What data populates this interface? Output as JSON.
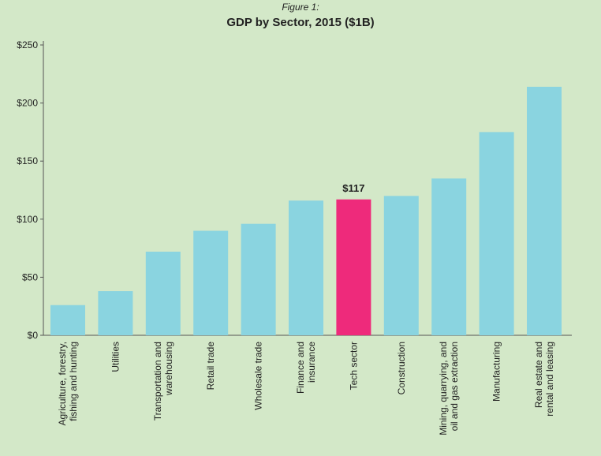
{
  "figure_caption": "Figure 1:",
  "colors": {
    "background": "#d3e8c8",
    "bar": "#8ad4e0",
    "highlight": "#ee2a7b",
    "axis": "#555555"
  },
  "chart_data": {
    "type": "bar",
    "title": "GDP by Sector, 2015 ($1B)",
    "xlabel": "",
    "ylabel": "",
    "ylim": [
      0,
      250
    ],
    "yticks": [
      {
        "value": 0,
        "label": "$0"
      },
      {
        "value": 50,
        "label": "$50"
      },
      {
        "value": 100,
        "label": "$100"
      },
      {
        "value": 150,
        "label": "$150"
      },
      {
        "value": 200,
        "label": "$200"
      },
      {
        "value": 250,
        "label": "$250"
      }
    ],
    "categories": [
      [
        "Agriculture, forestry,",
        "fishing and hunting"
      ],
      [
        "Utilities"
      ],
      [
        "Transportation and",
        "warehousing"
      ],
      [
        "Retail trade"
      ],
      [
        "Wholesale trade"
      ],
      [
        "Finance and",
        "insurance"
      ],
      [
        "Tech sector"
      ],
      [
        "Construction"
      ],
      [
        "Mining, quarrying, and",
        "oil and gas extraction"
      ],
      [
        "Manufacturing"
      ],
      [
        "Real estate and",
        "rental and leasing"
      ]
    ],
    "values": [
      26,
      38,
      72,
      90,
      96,
      116,
      117,
      120,
      135,
      175,
      214
    ],
    "highlight_index": 6,
    "highlight_label": "$117",
    "grid": false
  }
}
